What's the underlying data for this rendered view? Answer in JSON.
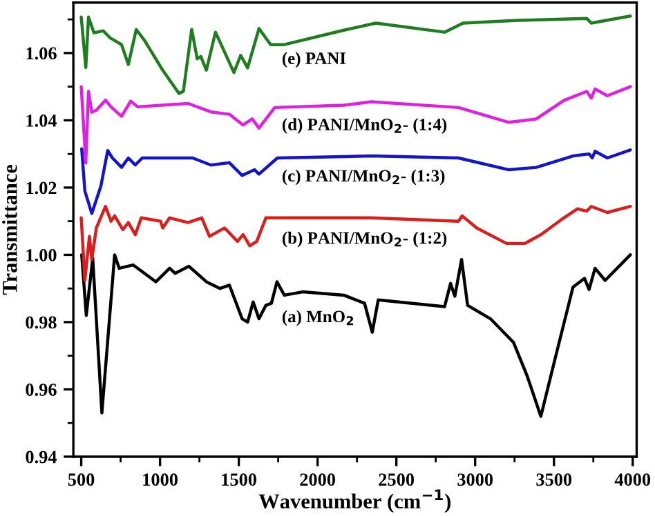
{
  "chart_data": {
    "type": "line",
    "xlabel": "Wavenumber (cm$^{−1}$)",
    "ylabel": "Transmittance",
    "xlim": [
      450,
      4025
    ],
    "ylim": [
      0.94,
      1.075
    ],
    "xticks": [
      500,
      {
        "value": 750,
        "label": null
      },
      1000,
      {
        "value": 1250,
        "label": null
      },
      1500,
      {
        "value": 1750,
        "label": null
      },
      2000,
      {
        "value": 2250,
        "label": null
      },
      2500,
      {
        "value": 2750,
        "label": null
      },
      3000,
      {
        "value": 3250,
        "label": null
      },
      3500,
      {
        "value": 3750,
        "label": null
      },
      4000
    ],
    "yticks": [
      {
        "value": 0.94,
        "label": "0.94"
      },
      {
        "value": 0.95,
        "label": null
      },
      {
        "value": 0.96,
        "label": "0.96"
      },
      {
        "value": 0.97,
        "label": null
      },
      {
        "value": 0.98,
        "label": "0.98"
      },
      {
        "value": 0.99,
        "label": null
      },
      {
        "value": 1.0,
        "label": "1.00"
      },
      {
        "value": 1.01,
        "label": null
      },
      {
        "value": 1.02,
        "label": "1.02"
      },
      {
        "value": 1.03,
        "label": null
      },
      {
        "value": 1.04,
        "label": "1.04"
      },
      {
        "value": 1.05,
        "label": null
      },
      {
        "value": 1.06,
        "label": "1.06"
      },
      {
        "value": 1.07,
        "label": null
      }
    ],
    "grid": false,
    "legend": false,
    "marker": "none",
    "line_style": "solid",
    "series": [
      {
        "color": "#000000",
        "x": [
          503,
          532,
          573,
          631,
          712,
          741,
          829,
          974,
          1061,
          1096,
          1183,
          1294,
          1381,
          1440,
          1521,
          1556,
          1591,
          1628,
          1672,
          1707,
          1742,
          1789,
          1905,
          2167,
          2298,
          2347,
          2385,
          2806,
          2844,
          2871,
          2914,
          2952,
          3097,
          3243,
          3330,
          3417,
          3504,
          3621,
          3694,
          3723,
          3761,
          3825,
          3985
        ],
        "values": [
          1.0,
          0.982,
          0.999,
          0.953,
          1.0,
          0.996,
          0.997,
          0.992,
          0.996,
          0.9945,
          0.9966,
          0.992,
          0.99,
          0.991,
          0.981,
          0.98,
          0.986,
          0.981,
          0.985,
          0.9856,
          0.992,
          0.988,
          0.989,
          0.988,
          0.9856,
          0.977,
          0.9866,
          0.9846,
          0.9915,
          0.9877,
          0.9986,
          0.985,
          0.981,
          0.974,
          0.964,
          0.952,
          0.9685,
          0.9904,
          0.993,
          0.9897,
          0.996,
          0.9924,
          1.0
        ]
      },
      {
        "color": "#dd1c1c",
        "x": [
          500,
          523,
          552,
          567,
          596,
          654,
          689,
          712,
          764,
          799,
          843,
          881,
          1003,
          1017,
          1061,
          1178,
          1265,
          1314,
          1410,
          1492,
          1527,
          1570,
          1614,
          1672,
          2254,
          2341,
          2894,
          2917,
          3010,
          3199,
          3316,
          3417,
          3563,
          3650,
          3708,
          3737,
          3839,
          3985
        ],
        "values": [
          1.011,
          0.9924,
          1.0055,
          0.9986,
          1.008,
          1.0144,
          1.01,
          1.0116,
          1.0075,
          1.0096,
          1.006,
          1.011,
          1.01,
          1.008,
          1.011,
          1.0096,
          1.011,
          1.0055,
          1.008,
          1.004,
          1.006,
          1.0027,
          1.004,
          1.011,
          1.011,
          1.011,
          1.01,
          1.0116,
          1.008,
          1.0034,
          1.0034,
          1.006,
          1.011,
          1.0137,
          1.013,
          1.0144,
          1.0126,
          1.0144
        ]
      },
      {
        "color": "#1414c8",
        "x": [
          503,
          523,
          567,
          625,
          668,
          698,
          756,
          799,
          843,
          887,
          1207,
          1323,
          1440,
          1521,
          1600,
          1628,
          1745,
          2341,
          2894,
          3214,
          3388,
          3621,
          3723,
          3743,
          3761,
          3839,
          3985
        ],
        "values": [
          1.0315,
          1.019,
          1.0123,
          1.0205,
          1.031,
          1.0288,
          1.026,
          1.0288,
          1.0267,
          1.0288,
          1.0288,
          1.0267,
          1.0274,
          1.0236,
          1.0253,
          1.024,
          1.0288,
          1.0294,
          1.0288,
          1.0253,
          1.026,
          1.0294,
          1.03,
          1.0288,
          1.0308,
          1.0288,
          1.0312
        ]
      },
      {
        "color": "#e020e0",
        "x": [
          500,
          529,
          546,
          567,
          596,
          654,
          689,
          756,
          814,
          858,
          1178,
          1323,
          1440,
          1527,
          1585,
          1628,
          1728,
          2167,
          2341,
          2894,
          3214,
          3388,
          3563,
          3708,
          3737,
          3761,
          3839,
          3985
        ],
        "values": [
          1.05,
          1.0273,
          1.0486,
          1.0424,
          1.043,
          1.046,
          1.044,
          1.0412,
          1.0457,
          1.044,
          1.045,
          1.0425,
          1.0418,
          1.0386,
          1.0404,
          1.0377,
          1.0438,
          1.0445,
          1.0455,
          1.0438,
          1.0394,
          1.0404,
          1.0459,
          1.0486,
          1.0466,
          1.0493,
          1.0473,
          1.05
        ]
      },
      {
        "color": "#1e7d1e",
        "x": [
          500,
          529,
          546,
          581,
          640,
          683,
          756,
          799,
          849,
          901,
          1017,
          1120,
          1148,
          1201,
          1236,
          1259,
          1294,
          1352,
          1469,
          1512,
          1556,
          1628,
          1702,
          1789,
          2167,
          2370,
          2806,
          2923,
          3272,
          3708,
          3737,
          3985
        ],
        "values": [
          1.0707,
          1.0557,
          1.0707,
          1.066,
          1.0666,
          1.0645,
          1.0625,
          1.0566,
          1.067,
          1.0638,
          1.0549,
          1.048,
          1.0486,
          1.067,
          1.0583,
          1.059,
          1.0549,
          1.0662,
          1.0542,
          1.0593,
          1.0556,
          1.0673,
          1.0625,
          1.0625,
          1.0668,
          1.0689,
          1.0662,
          1.0689,
          1.0697,
          1.0703,
          1.0689,
          1.071
        ]
      }
    ],
    "annotations": [
      "(a) MnO$_{2}$",
      "(b) PANI/MnO$_{2}$- (1:2)",
      "(c) PANI/MnO$_{2}$- (1:3)",
      "(d) PANI/MnO$_{2}$- (1:4)",
      "(e) PANI"
    ]
  }
}
